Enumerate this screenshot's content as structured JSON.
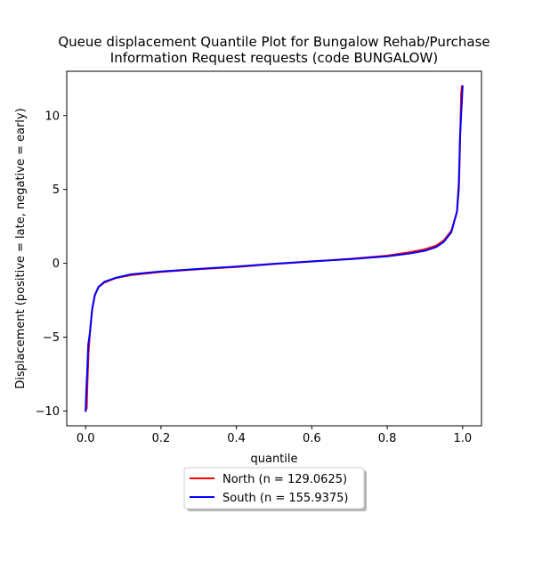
{
  "chart_data": {
    "type": "line",
    "title_lines": [
      "Queue displacement Quantile Plot for Bungalow Rehab/Purchase",
      "Information Request  requests (code BUNGALOW)"
    ],
    "xlabel": "quantile",
    "ylabel": "Displacement (positive = late, negative = early)",
    "xlim": [
      -0.05,
      1.05
    ],
    "ylim": [
      -11,
      13
    ],
    "xticks": [
      {
        "value": 0.0,
        "label": "0.0"
      },
      {
        "value": 0.2,
        "label": "0.2"
      },
      {
        "value": 0.4,
        "label": "0.4"
      },
      {
        "value": 0.6,
        "label": "0.6"
      },
      {
        "value": 0.8,
        "label": "0.8"
      },
      {
        "value": 1.0,
        "label": "1.0"
      }
    ],
    "yticks": [
      {
        "value": -10,
        "label": "−10"
      },
      {
        "value": -5,
        "label": "−5"
      },
      {
        "value": 0,
        "label": "0"
      },
      {
        "value": 5,
        "label": "5"
      },
      {
        "value": 10,
        "label": "10"
      }
    ],
    "grid": false,
    "legend_position": "below",
    "series": [
      {
        "name": "North (n = 129.0625)",
        "color": "#ff0000",
        "points": [
          [
            0.0,
            -10.0
          ],
          [
            0.003,
            -9.8
          ],
          [
            0.005,
            -8.0
          ],
          [
            0.008,
            -6.0
          ],
          [
            0.012,
            -4.5
          ],
          [
            0.018,
            -3.0
          ],
          [
            0.025,
            -2.1
          ],
          [
            0.035,
            -1.6
          ],
          [
            0.05,
            -1.3
          ],
          [
            0.08,
            -1.0
          ],
          [
            0.12,
            -0.8
          ],
          [
            0.2,
            -0.58
          ],
          [
            0.3,
            -0.4
          ],
          [
            0.4,
            -0.25
          ],
          [
            0.5,
            -0.05
          ],
          [
            0.6,
            0.12
          ],
          [
            0.7,
            0.3
          ],
          [
            0.8,
            0.52
          ],
          [
            0.86,
            0.75
          ],
          [
            0.9,
            0.95
          ],
          [
            0.93,
            1.2
          ],
          [
            0.95,
            1.55
          ],
          [
            0.97,
            2.2
          ],
          [
            0.985,
            3.5
          ],
          [
            0.99,
            5.0
          ],
          [
            0.993,
            8.0
          ],
          [
            0.996,
            11.5
          ],
          [
            0.998,
            12.0
          ]
        ]
      },
      {
        "name": "South (n = 155.9375)",
        "color": "#0000ff",
        "points": [
          [
            0.0,
            -10.0
          ],
          [
            0.002,
            -8.5
          ],
          [
            0.004,
            -7.5
          ],
          [
            0.007,
            -5.5
          ],
          [
            0.012,
            -4.6
          ],
          [
            0.017,
            -3.2
          ],
          [
            0.024,
            -2.2
          ],
          [
            0.034,
            -1.6
          ],
          [
            0.05,
            -1.25
          ],
          [
            0.08,
            -0.98
          ],
          [
            0.12,
            -0.75
          ],
          [
            0.2,
            -0.55
          ],
          [
            0.3,
            -0.38
          ],
          [
            0.4,
            -0.22
          ],
          [
            0.5,
            -0.03
          ],
          [
            0.6,
            0.13
          ],
          [
            0.7,
            0.28
          ],
          [
            0.8,
            0.47
          ],
          [
            0.86,
            0.67
          ],
          [
            0.9,
            0.85
          ],
          [
            0.93,
            1.1
          ],
          [
            0.95,
            1.45
          ],
          [
            0.97,
            2.1
          ],
          [
            0.985,
            3.5
          ],
          [
            0.99,
            5.5
          ],
          [
            0.993,
            8.5
          ],
          [
            0.997,
            10.5
          ],
          [
            1.0,
            12.0
          ]
        ]
      }
    ]
  }
}
